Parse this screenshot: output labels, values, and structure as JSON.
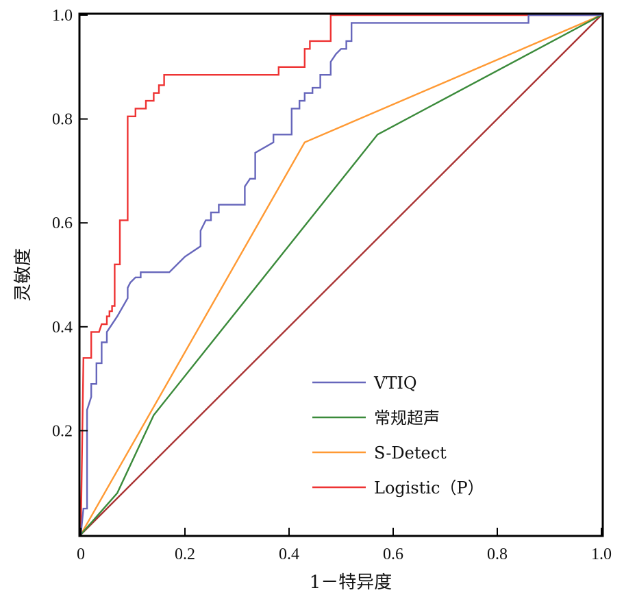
{
  "chart_data": {
    "type": "line",
    "xlabel": "1－特异度",
    "ylabel": "灵敏度",
    "xlim": [
      0,
      1
    ],
    "ylim": [
      0,
      1
    ],
    "x_ticks": [
      "0",
      "0.2",
      "0.4",
      "0.6",
      "0.8",
      "1.0"
    ],
    "y_ticks": [
      "0.2",
      "0.4",
      "0.6",
      "0.8",
      "1.0"
    ],
    "grid": false,
    "legend_position": "bottom-right",
    "series": [
      {
        "name": "VTIQ",
        "color": "#6666bb",
        "points": [
          [
            0,
            0
          ],
          [
            0.005,
            0.05
          ],
          [
            0.012,
            0.05
          ],
          [
            0.012,
            0.24
          ],
          [
            0.02,
            0.265
          ],
          [
            0.02,
            0.29
          ],
          [
            0.03,
            0.29
          ],
          [
            0.03,
            0.33
          ],
          [
            0.04,
            0.33
          ],
          [
            0.04,
            0.37
          ],
          [
            0.05,
            0.37
          ],
          [
            0.05,
            0.39
          ],
          [
            0.07,
            0.42
          ],
          [
            0.09,
            0.455
          ],
          [
            0.09,
            0.475
          ],
          [
            0.095,
            0.485
          ],
          [
            0.105,
            0.495
          ],
          [
            0.115,
            0.495
          ],
          [
            0.115,
            0.505
          ],
          [
            0.17,
            0.505
          ],
          [
            0.2,
            0.535
          ],
          [
            0.23,
            0.555
          ],
          [
            0.23,
            0.585
          ],
          [
            0.24,
            0.605
          ],
          [
            0.25,
            0.605
          ],
          [
            0.25,
            0.62
          ],
          [
            0.265,
            0.62
          ],
          [
            0.265,
            0.635
          ],
          [
            0.315,
            0.635
          ],
          [
            0.315,
            0.67
          ],
          [
            0.325,
            0.685
          ],
          [
            0.335,
            0.685
          ],
          [
            0.335,
            0.735
          ],
          [
            0.37,
            0.755
          ],
          [
            0.37,
            0.77
          ],
          [
            0.405,
            0.77
          ],
          [
            0.405,
            0.82
          ],
          [
            0.42,
            0.82
          ],
          [
            0.42,
            0.835
          ],
          [
            0.43,
            0.835
          ],
          [
            0.43,
            0.85
          ],
          [
            0.445,
            0.85
          ],
          [
            0.445,
            0.86
          ],
          [
            0.46,
            0.86
          ],
          [
            0.46,
            0.885
          ],
          [
            0.48,
            0.885
          ],
          [
            0.48,
            0.91
          ],
          [
            0.49,
            0.925
          ],
          [
            0.5,
            0.935
          ],
          [
            0.51,
            0.935
          ],
          [
            0.51,
            0.95
          ],
          [
            0.52,
            0.95
          ],
          [
            0.52,
            0.985
          ],
          [
            0.86,
            0.985
          ],
          [
            0.86,
            1
          ],
          [
            1,
            1
          ]
        ]
      },
      {
        "name": "常规超声",
        "color": "#3a8a3a",
        "points": [
          [
            0,
            0
          ],
          [
            0.07,
            0.08
          ],
          [
            0.14,
            0.23
          ],
          [
            0.57,
            0.77
          ],
          [
            1,
            1
          ]
        ]
      },
      {
        "name": "S-Detect",
        "color": "#ff9933",
        "points": [
          [
            0,
            0
          ],
          [
            0.43,
            0.755
          ],
          [
            1,
            1
          ]
        ]
      },
      {
        "name": "Logistic（P）",
        "color": "#ee3333",
        "points": [
          [
            0,
            0
          ],
          [
            0.005,
            0.34
          ],
          [
            0.02,
            0.34
          ],
          [
            0.02,
            0.39
          ],
          [
            0.035,
            0.39
          ],
          [
            0.04,
            0.405
          ],
          [
            0.05,
            0.405
          ],
          [
            0.05,
            0.42
          ],
          [
            0.055,
            0.42
          ],
          [
            0.055,
            0.43
          ],
          [
            0.06,
            0.43
          ],
          [
            0.06,
            0.44
          ],
          [
            0.065,
            0.44
          ],
          [
            0.065,
            0.52
          ],
          [
            0.075,
            0.52
          ],
          [
            0.075,
            0.605
          ],
          [
            0.09,
            0.605
          ],
          [
            0.09,
            0.805
          ],
          [
            0.105,
            0.805
          ],
          [
            0.105,
            0.82
          ],
          [
            0.125,
            0.82
          ],
          [
            0.125,
            0.835
          ],
          [
            0.14,
            0.835
          ],
          [
            0.14,
            0.85
          ],
          [
            0.15,
            0.85
          ],
          [
            0.15,
            0.865
          ],
          [
            0.16,
            0.865
          ],
          [
            0.16,
            0.885
          ],
          [
            0.38,
            0.885
          ],
          [
            0.38,
            0.9
          ],
          [
            0.43,
            0.9
          ],
          [
            0.43,
            0.935
          ],
          [
            0.44,
            0.935
          ],
          [
            0.44,
            0.95
          ],
          [
            0.48,
            0.95
          ],
          [
            0.48,
            1
          ],
          [
            1,
            1
          ]
        ]
      },
      {
        "name": "",
        "color": "#aa3333",
        "points": [
          [
            0,
            0
          ],
          [
            1,
            1
          ]
        ]
      }
    ],
    "legend": [
      {
        "label": "VTIQ",
        "color": "#6666bb"
      },
      {
        "label": "常规超声",
        "color": "#3a8a3a"
      },
      {
        "label": "S-Detect",
        "color": "#ff9933"
      },
      {
        "label": "Logistic（P）",
        "color": "#ee3333"
      }
    ]
  }
}
